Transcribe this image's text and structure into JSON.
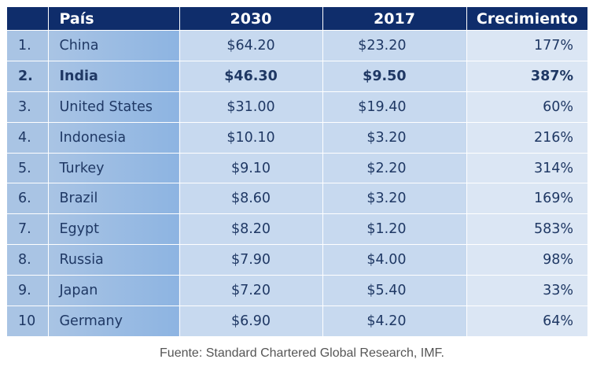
{
  "table": {
    "headers": {
      "rank": "",
      "country": "País",
      "y2030": "2030",
      "y2017": "2017",
      "growth": "Crecimiento"
    },
    "rows": [
      {
        "rank": "1.",
        "country": "China",
        "y2030": "$64.20",
        "y2017": "$23.20",
        "growth": "177%",
        "highlight": false
      },
      {
        "rank": "2.",
        "country": "India",
        "y2030": "$46.30",
        "y2017": "$9.50",
        "growth": "387%",
        "highlight": true
      },
      {
        "rank": "3.",
        "country": "United States",
        "y2030": "$31.00",
        "y2017": "$19.40",
        "growth": "60%",
        "highlight": false
      },
      {
        "rank": "4.",
        "country": "Indonesia",
        "y2030": "$10.10",
        "y2017": "$3.20",
        "growth": "216%",
        "highlight": false
      },
      {
        "rank": "5.",
        "country": "Turkey",
        "y2030": "$9.10",
        "y2017": "$2.20",
        "growth": "314%",
        "highlight": false
      },
      {
        "rank": "6.",
        "country": "Brazil",
        "y2030": "$8.60",
        "y2017": "$3.20",
        "growth": "169%",
        "highlight": false
      },
      {
        "rank": "7.",
        "country": "Egypt",
        "y2030": "$8.20",
        "y2017": "$1.20",
        "growth": "583%",
        "highlight": false
      },
      {
        "rank": "8.",
        "country": "Russia",
        "y2030": "$7.90",
        "y2017": "$4.00",
        "growth": "98%",
        "highlight": false
      },
      {
        "rank": "9.",
        "country": "Japan",
        "y2030": "$7.20",
        "y2017": "$5.40",
        "growth": "33%",
        "highlight": false
      },
      {
        "rank": "10",
        "country": "Germany",
        "y2030": "$6.90",
        "y2017": "$4.20",
        "growth": "64%",
        "highlight": false
      }
    ]
  },
  "source": "Fuente: Standard Chartered Global Research, IMF.",
  "colors": {
    "header_bg": "#0f2d6b",
    "header_text": "#ffffff",
    "body_text": "#1f3864",
    "rank_bg": "#a9c4e4",
    "value_bg": "#c7d9ef",
    "growth_bg": "#dbe6f4"
  }
}
